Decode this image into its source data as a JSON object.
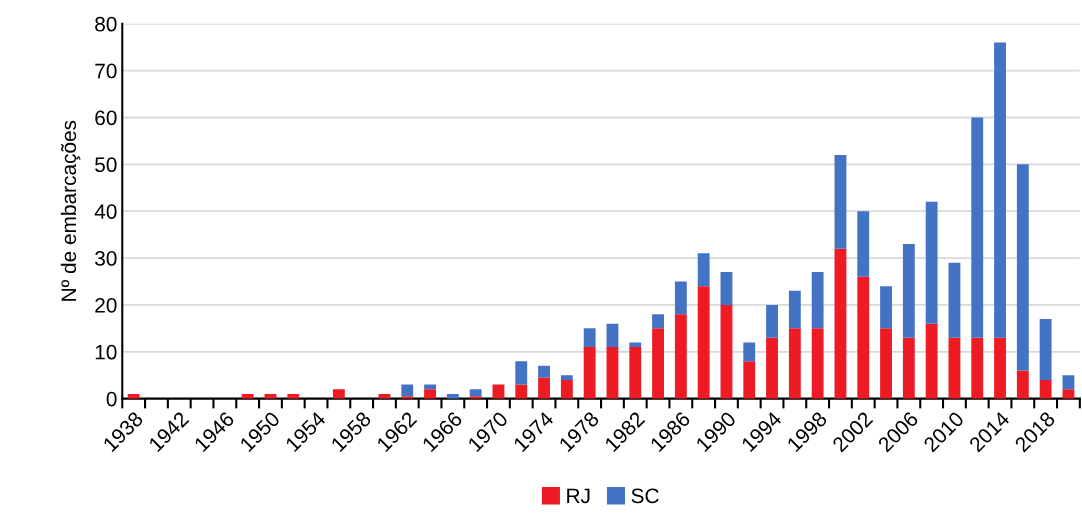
{
  "chart_data": {
    "type": "bar",
    "stacked": true,
    "ylabel": "Nº de embarcações",
    "categories": [
      "1938",
      null,
      "1942",
      null,
      "1946",
      null,
      "1950",
      null,
      "1954",
      null,
      "1958",
      null,
      "1962",
      null,
      "1966",
      null,
      "1970",
      null,
      "1974",
      null,
      "1978",
      null,
      "1982",
      null,
      "1986",
      null,
      "1990",
      null,
      "1994",
      null,
      "1998",
      null,
      "2002",
      null,
      "2006",
      null,
      "2010",
      null,
      "2014",
      null,
      "2018",
      null
    ],
    "series": [
      {
        "name": "RJ",
        "color": "#ed1c24",
        "values": [
          1,
          0,
          0,
          0,
          0,
          1,
          1,
          1,
          0,
          2,
          0,
          1,
          0.5,
          2,
          0,
          0.5,
          3,
          3,
          4.5,
          4,
          11,
          11,
          11,
          15,
          18,
          24,
          20,
          8,
          13,
          15,
          15,
          32,
          26,
          15,
          13,
          16,
          13,
          13,
          13,
          6,
          4,
          2
        ]
      },
      {
        "name": "SC",
        "color": "#4472c4",
        "values": [
          0,
          0,
          0,
          0,
          0,
          0,
          0,
          0,
          0,
          0,
          0,
          0,
          2.5,
          1,
          1,
          1.5,
          0,
          5,
          2.5,
          1,
          4,
          5,
          1,
          3,
          7,
          7,
          7,
          4,
          7,
          8,
          12,
          20,
          14,
          9,
          20,
          26,
          16,
          47,
          63,
          44,
          13,
          3
        ]
      }
    ],
    "ylim": [
      0,
      80
    ],
    "yticks": [
      0,
      10,
      20,
      30,
      40,
      50,
      60,
      70,
      80
    ],
    "grid": "y",
    "legend": "bottom"
  }
}
